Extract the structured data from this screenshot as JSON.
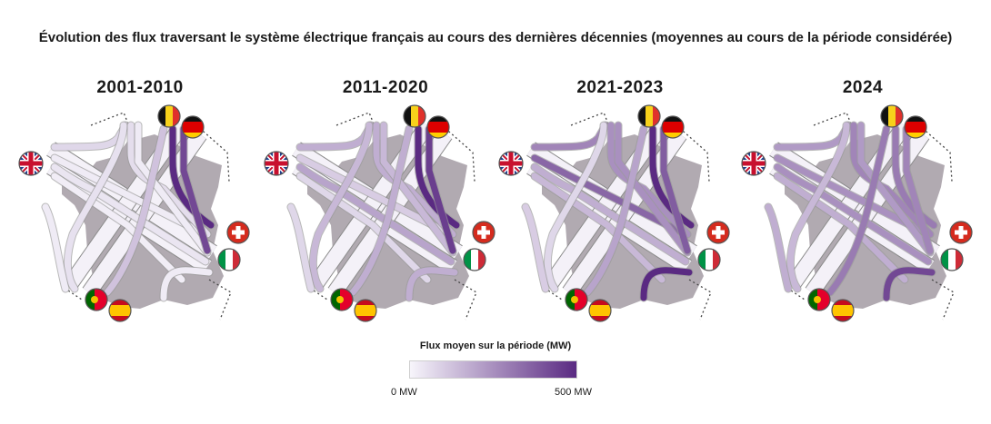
{
  "title": "Évolution des flux traversant le système électrique français au cours des dernières décennies (moyennes au cours de la période considérée)",
  "colors": {
    "flux_min": "#f7f5fb",
    "flux_max": "#5a2a82",
    "france": "#a9a1a9",
    "road_fill": "#f4f1f8",
    "road_stroke": "#8b8b8b"
  },
  "countries": [
    "gb",
    "be",
    "de",
    "ch",
    "it",
    "pt",
    "es"
  ],
  "panels": [
    {
      "period": "2001-2010",
      "flows": {
        "gb_be": 0.15,
        "gb_ch": 0.05,
        "gb_it": 0.08,
        "gb_es": 0.04,
        "be_ch": 0.12,
        "be_it": 0.05,
        "be_es": 0.1,
        "de_ch": 1.0,
        "de_it": 0.85,
        "de_es": 0.25,
        "ch_es": 0.05,
        "it_es": 0.05
      }
    },
    {
      "period": "2011-2020",
      "flows": {
        "gb_be": 0.35,
        "gb_ch": 0.2,
        "gb_it": 0.4,
        "gb_es": 0.15,
        "be_ch": 0.35,
        "be_it": 0.3,
        "be_es": 0.3,
        "de_ch": 1.0,
        "de_it": 0.9,
        "de_es": 0.35,
        "ch_es": 0.15,
        "it_es": 0.35
      }
    },
    {
      "period": "2021-2023",
      "flows": {
        "gb_be": 0.55,
        "gb_ch": 0.7,
        "gb_it": 0.35,
        "gb_es": 0.3,
        "be_ch": 0.5,
        "be_it": 0.5,
        "be_es": 0.15,
        "de_ch": 1.0,
        "de_it": 0.75,
        "de_es": 0.4,
        "ch_es": 0.2,
        "it_es": 1.0
      }
    },
    {
      "period": "2024",
      "flows": {
        "gb_be": 0.45,
        "gb_ch": 0.5,
        "gb_it": 0.5,
        "gb_es": 0.35,
        "be_ch": 0.55,
        "be_it": 0.45,
        "be_es": 0.3,
        "de_ch": 0.6,
        "de_it": 0.55,
        "de_es": 0.6,
        "ch_es": 0.35,
        "it_es": 0.85
      }
    }
  ],
  "legend": {
    "title": "Flux moyen sur la période (MW)",
    "min_label": "0 MW",
    "max_label": "500 MW",
    "min_value": 0,
    "max_value": 500
  }
}
